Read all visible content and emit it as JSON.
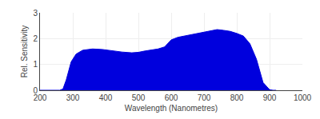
{
  "chart_data": {
    "type": "area",
    "xlabel": "Wavelength (Nanometres)",
    "ylabel": "Rel. Sensitivity",
    "x": [
      200,
      260,
      270,
      280,
      295,
      310,
      330,
      360,
      390,
      420,
      450,
      480,
      500,
      520,
      540,
      560,
      580,
      600,
      620,
      640,
      660,
      680,
      700,
      720,
      740,
      760,
      780,
      800,
      820,
      840,
      860,
      880,
      900,
      910,
      920
    ],
    "values": [
      0.0,
      0.0,
      0.05,
      0.4,
      1.1,
      1.4,
      1.55,
      1.6,
      1.58,
      1.52,
      1.48,
      1.45,
      1.47,
      1.52,
      1.55,
      1.6,
      1.68,
      1.95,
      2.05,
      2.1,
      2.15,
      2.2,
      2.25,
      2.3,
      2.35,
      2.32,
      2.28,
      2.2,
      2.1,
      1.8,
      1.2,
      0.3,
      0.02,
      0.0,
      0.0
    ],
    "color": "#0000dd",
    "xlim": [
      200,
      1000
    ],
    "ylim": [
      0,
      3
    ],
    "xticks": [
      200,
      300,
      400,
      500,
      600,
      700,
      800,
      900,
      1000
    ],
    "yticks": [
      0,
      1,
      2,
      3
    ],
    "grid": true
  }
}
